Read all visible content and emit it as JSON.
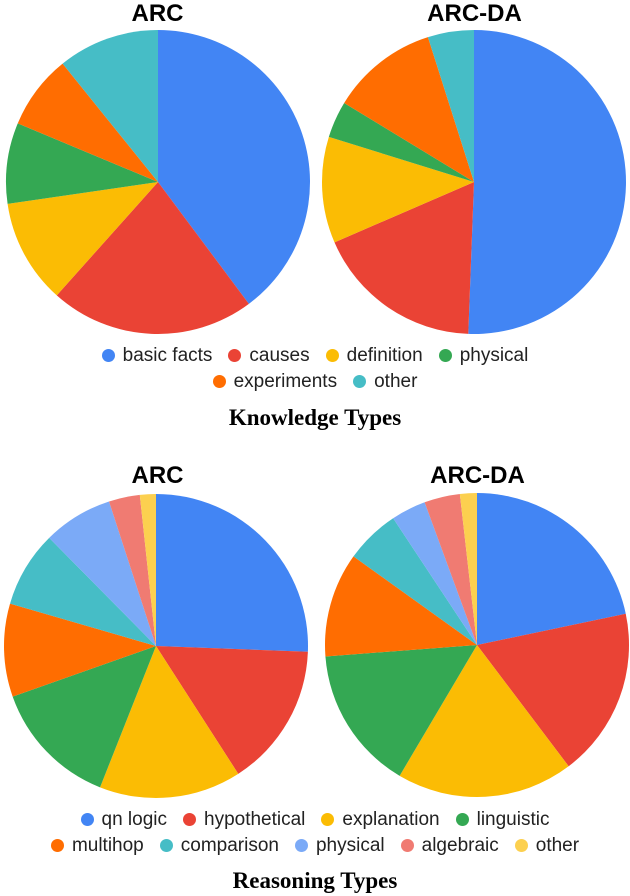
{
  "sections": {
    "knowledge": {
      "title": "Knowledge Types",
      "charts": [
        {
          "title": "ARC"
        },
        {
          "title": "ARC-DA"
        }
      ],
      "legend": [
        {
          "label": "basic facts",
          "color": "#4285F4"
        },
        {
          "label": "causes",
          "color": "#EA4335"
        },
        {
          "label": "definition",
          "color": "#FBBC04"
        },
        {
          "label": "physical",
          "color": "#34A853"
        },
        {
          "label": "experiments",
          "color": "#FF6D01"
        },
        {
          "label": "other",
          "color": "#46BDC6"
        }
      ]
    },
    "reasoning": {
      "title": "Reasoning Types",
      "charts": [
        {
          "title": "ARC"
        },
        {
          "title": "ARC-DA"
        }
      ],
      "legend": [
        {
          "label": "qn logic",
          "color": "#4285F4"
        },
        {
          "label": "hypothetical",
          "color": "#EA4335"
        },
        {
          "label": "explanation",
          "color": "#FBBC04"
        },
        {
          "label": "linguistic",
          "color": "#34A853"
        },
        {
          "label": "multihop",
          "color": "#FF6D01"
        },
        {
          "label": "comparison",
          "color": "#46BDC6"
        },
        {
          "label": "physical",
          "color": "#7BAAF7"
        },
        {
          "label": "algebraic",
          "color": "#F07B72"
        },
        {
          "label": "other",
          "color": "#FCD04F"
        }
      ]
    }
  },
  "chart_data": [
    {
      "type": "pie",
      "title": "ARC",
      "group": "Knowledge Types",
      "categories": [
        "basic facts",
        "causes",
        "definition",
        "physical",
        "experiments",
        "other"
      ],
      "values": [
        39.8,
        21.8,
        11.1,
        8.6,
        7.9,
        10.8
      ],
      "colors": [
        "#4285F4",
        "#EA4335",
        "#FBBC04",
        "#34A853",
        "#FF6D01",
        "#46BDC6"
      ],
      "legend_position": "bottom"
    },
    {
      "type": "pie",
      "title": "ARC-DA",
      "group": "Knowledge Types",
      "categories": [
        "basic facts",
        "causes",
        "definition",
        "physical",
        "experiments",
        "other"
      ],
      "values": [
        50.6,
        17.9,
        11.3,
        3.9,
        11.4,
        4.9
      ],
      "colors": [
        "#4285F4",
        "#EA4335",
        "#FBBC04",
        "#34A853",
        "#FF6D01",
        "#46BDC6"
      ],
      "legend_position": "bottom"
    },
    {
      "type": "pie",
      "title": "ARC",
      "group": "Reasoning Types",
      "categories": [
        "qn logic",
        "hypothetical",
        "explanation",
        "linguistic",
        "multihop",
        "comparison",
        "physical",
        "algebraic",
        "other"
      ],
      "values": [
        25.6,
        15.3,
        15.1,
        13.6,
        9.9,
        8.1,
        7.4,
        3.3,
        1.7
      ],
      "colors": [
        "#4285F4",
        "#EA4335",
        "#FBBC04",
        "#34A853",
        "#FF6D01",
        "#46BDC6",
        "#7BAAF7",
        "#F07B72",
        "#FCD04F"
      ],
      "legend_position": "bottom"
    },
    {
      "type": "pie",
      "title": "ARC-DA",
      "group": "Reasoning Types",
      "categories": [
        "qn logic",
        "hypothetical",
        "explanation",
        "linguistic",
        "multihop",
        "comparison",
        "physical",
        "algebraic",
        "other"
      ],
      "values": [
        21.7,
        18.0,
        18.8,
        15.3,
        11.1,
        5.8,
        3.7,
        3.8,
        1.8
      ],
      "colors": [
        "#4285F4",
        "#EA4335",
        "#FBBC04",
        "#34A853",
        "#FF6D01",
        "#46BDC6",
        "#7BAAF7",
        "#F07B72",
        "#FCD04F"
      ],
      "legend_position": "bottom"
    }
  ]
}
